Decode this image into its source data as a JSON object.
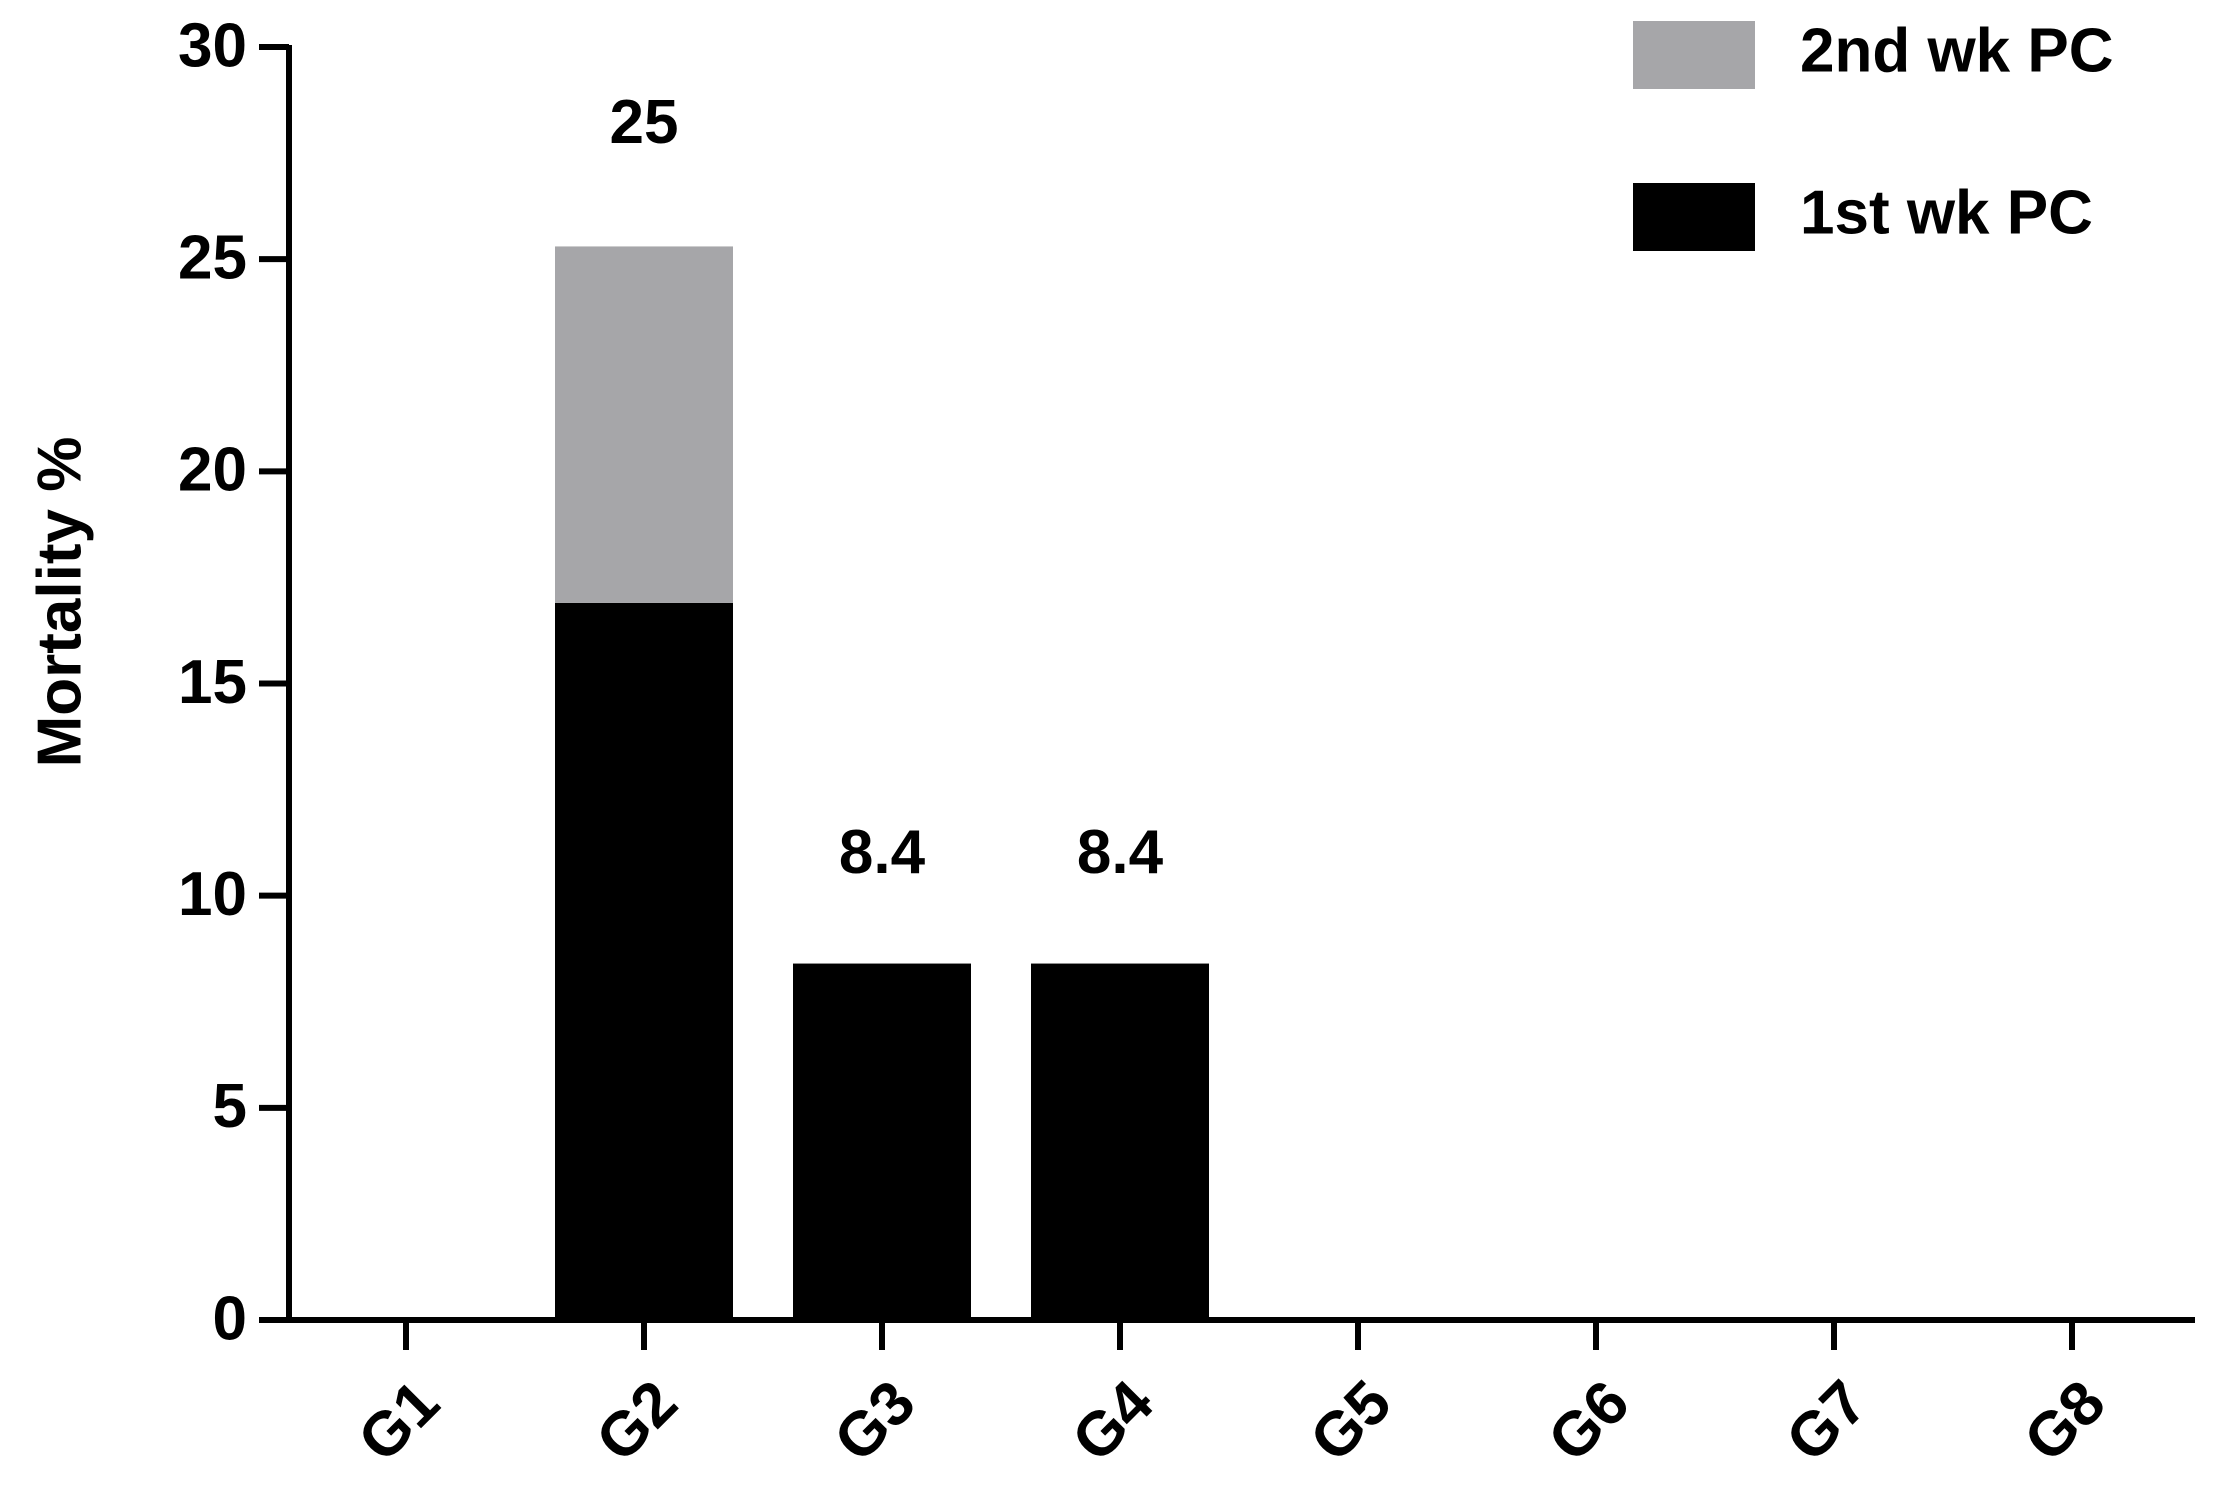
{
  "chart_data": {
    "type": "stacked_bar",
    "y_label": "Mortality %",
    "categories": [
      "G1",
      "G2",
      "G3",
      "G4",
      "G5",
      "G6",
      "G7",
      "G8"
    ],
    "series": [
      {
        "name": "1st wk PC",
        "color": "#000000",
        "values": [
          0,
          16.9,
          8.4,
          8.4,
          0,
          0,
          0,
          0
        ],
        "value_labels": [
          null,
          null,
          "8.4",
          "8.4",
          null,
          null,
          null,
          null
        ]
      },
      {
        "name": "2nd wk PC",
        "color": "#a6a6a9",
        "values": [
          0,
          8.4,
          0,
          0,
          0,
          0,
          0,
          0
        ]
      }
    ],
    "annotations": [
      {
        "text": "25",
        "x": "G2"
      }
    ],
    "ylim": [
      0,
      30
    ],
    "yticks": [
      0,
      5,
      10,
      15,
      20,
      25,
      30
    ],
    "legend": "top-right",
    "grid": false
  }
}
